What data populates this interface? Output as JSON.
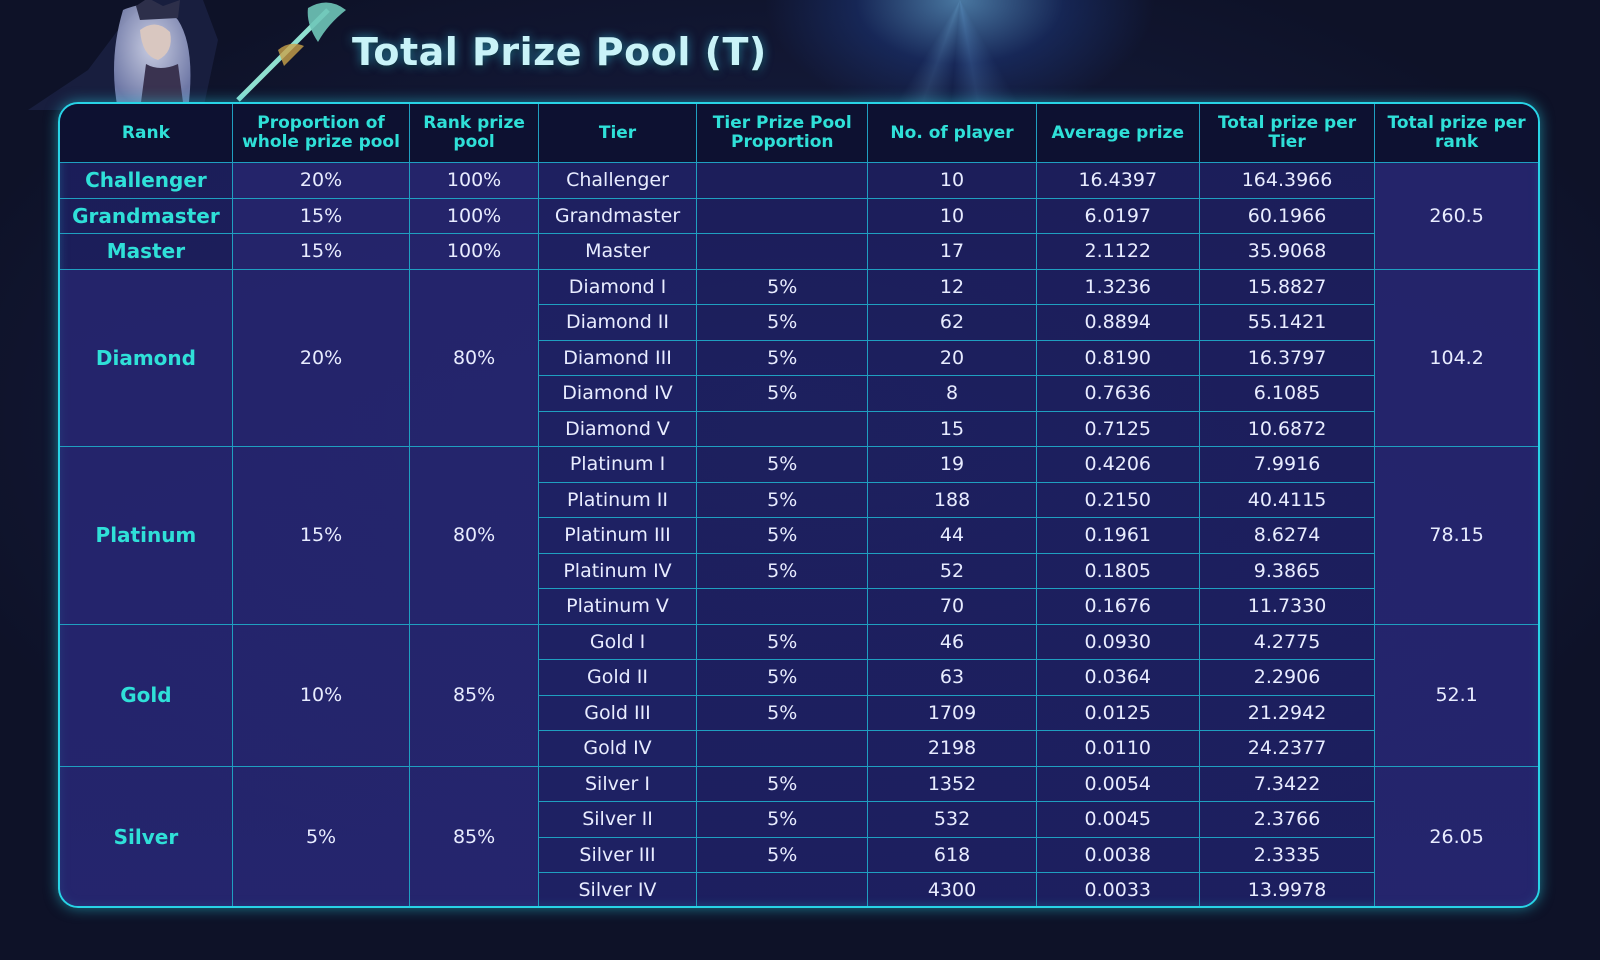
{
  "title": "Total Prize Pool (T)",
  "colors": {
    "accent": "#2fe0d8",
    "border": "#28d3e6",
    "header_bg": "#0d1131",
    "body_bg": "#1c1e5c"
  },
  "icons": {
    "hero_art": "champion-portrait"
  },
  "headers": {
    "rank": "Rank",
    "proportion": "Proportion of whole prize pool",
    "rank_pool": "Rank prize pool",
    "tier": "Tier",
    "tier_prop": "Tier Prize Pool Proportion",
    "players": "No. of player",
    "avg": "Average prize",
    "total_tier": "Total prize per Tier",
    "total_rank": "Total prize per rank"
  },
  "top": {
    "total_prize_per_rank": "260.5",
    "ranks": [
      {
        "name": "Challenger",
        "proportion": "20%",
        "rank_pool": "100%",
        "tier": "Challenger",
        "tier_prop": "",
        "players": "10",
        "avg": "16.4397",
        "total_tier": "164.3966"
      },
      {
        "name": "Grandmaster",
        "proportion": "15%",
        "rank_pool": "100%",
        "tier": "Grandmaster",
        "tier_prop": "",
        "players": "10",
        "avg": "6.0197",
        "total_tier": "60.1966"
      },
      {
        "name": "Master",
        "proportion": "15%",
        "rank_pool": "100%",
        "tier": "Master",
        "tier_prop": "",
        "players": "17",
        "avg": "2.1122",
        "total_tier": "35.9068"
      }
    ]
  },
  "groups": [
    {
      "name": "Diamond",
      "proportion": "20%",
      "rank_pool": "80%",
      "total_prize_per_rank": "104.2",
      "tiers": [
        {
          "tier": "Diamond I",
          "tier_prop": "5%",
          "players": "12",
          "avg": "1.3236",
          "total_tier": "15.8827"
        },
        {
          "tier": "Diamond II",
          "tier_prop": "5%",
          "players": "62",
          "avg": "0.8894",
          "total_tier": "55.1421"
        },
        {
          "tier": "Diamond III",
          "tier_prop": "5%",
          "players": "20",
          "avg": "0.8190",
          "total_tier": "16.3797"
        },
        {
          "tier": "Diamond IV",
          "tier_prop": "5%",
          "players": "8",
          "avg": "0.7636",
          "total_tier": "6.1085"
        },
        {
          "tier": "Diamond V",
          "tier_prop": "",
          "players": "15",
          "avg": "0.7125",
          "total_tier": "10.6872"
        }
      ]
    },
    {
      "name": "Platinum",
      "proportion": "15%",
      "rank_pool": "80%",
      "total_prize_per_rank": "78.15",
      "tiers": [
        {
          "tier": "Platinum I",
          "tier_prop": "5%",
          "players": "19",
          "avg": "0.4206",
          "total_tier": "7.9916"
        },
        {
          "tier": "Platinum II",
          "tier_prop": "5%",
          "players": "188",
          "avg": "0.2150",
          "total_tier": "40.4115"
        },
        {
          "tier": "Platinum III",
          "tier_prop": "5%",
          "players": "44",
          "avg": "0.1961",
          "total_tier": "8.6274"
        },
        {
          "tier": "Platinum IV",
          "tier_prop": "5%",
          "players": "52",
          "avg": "0.1805",
          "total_tier": "9.3865"
        },
        {
          "tier": "Platinum V",
          "tier_prop": "",
          "players": "70",
          "avg": "0.1676",
          "total_tier": "11.7330"
        }
      ]
    },
    {
      "name": "Gold",
      "proportion": "10%",
      "rank_pool": "85%",
      "total_prize_per_rank": "52.1",
      "tiers": [
        {
          "tier": "Gold I",
          "tier_prop": "5%",
          "players": "46",
          "avg": "0.0930",
          "total_tier": "4.2775"
        },
        {
          "tier": "Gold II",
          "tier_prop": "5%",
          "players": "63",
          "avg": "0.0364",
          "total_tier": "2.2906"
        },
        {
          "tier": "Gold III",
          "tier_prop": "5%",
          "players": "1709",
          "avg": "0.0125",
          "total_tier": "21.2942"
        },
        {
          "tier": "Gold IV",
          "tier_prop": "",
          "players": "2198",
          "avg": "0.0110",
          "total_tier": "24.2377"
        }
      ]
    },
    {
      "name": "Silver",
      "proportion": "5%",
      "rank_pool": "85%",
      "total_prize_per_rank": "26.05",
      "tiers": [
        {
          "tier": "Silver I",
          "tier_prop": "5%",
          "players": "1352",
          "avg": "0.0054",
          "total_tier": "7.3422"
        },
        {
          "tier": "Silver II",
          "tier_prop": "5%",
          "players": "532",
          "avg": "0.0045",
          "total_tier": "2.3766"
        },
        {
          "tier": "Silver III",
          "tier_prop": "5%",
          "players": "618",
          "avg": "0.0038",
          "total_tier": "2.3335"
        },
        {
          "tier": "Silver IV",
          "tier_prop": "",
          "players": "4300",
          "avg": "0.0033",
          "total_tier": "13.9978"
        }
      ]
    }
  ]
}
